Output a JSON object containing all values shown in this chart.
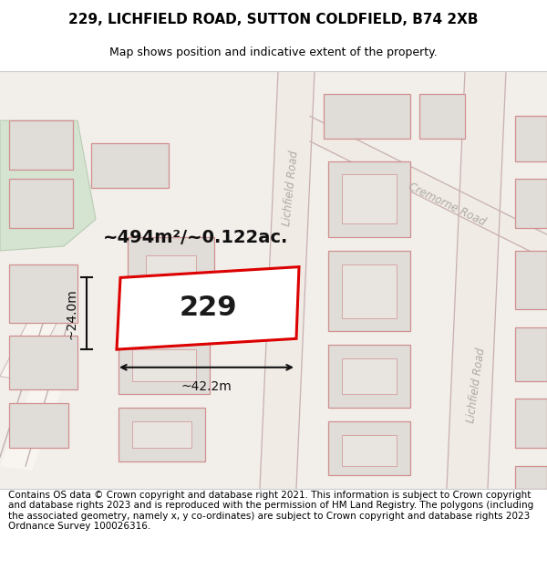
{
  "title_line1": "229, LICHFIELD ROAD, SUTTON COLDFIELD, B74 2XB",
  "title_line2": "Map shows position and indicative extent of the property.",
  "footer_text": "Contains OS data © Crown copyright and database right 2021. This information is subject to Crown copyright and database rights 2023 and is reproduced with the permission of HM Land Registry. The polygons (including the associated geometry, namely x, y co-ordinates) are subject to Crown copyright and database rights 2023 Ordnance Survey 100026316.",
  "area_label": "~494m²/~0.122ac.",
  "number_label": "229",
  "width_label": "~42.2m",
  "height_label": "~24.0m",
  "map_bg": "#f2eeea",
  "block_fill": "#e0dcd8",
  "block_edge": "#d09090",
  "green_fill": "#d4e4d0",
  "green_edge": "#b8ccb4",
  "road_label_color": "#b0a8a4",
  "highlight_fill": "#ffffff",
  "highlight_edge": "#dd0000",
  "dim_color": "#111111",
  "title_fontsize": 11,
  "subtitle_fontsize": 9,
  "footer_fontsize": 7.5,
  "area_fontsize": 14,
  "number_fontsize": 22,
  "dim_fontsize": 10,
  "road_fontsize": 8.5
}
